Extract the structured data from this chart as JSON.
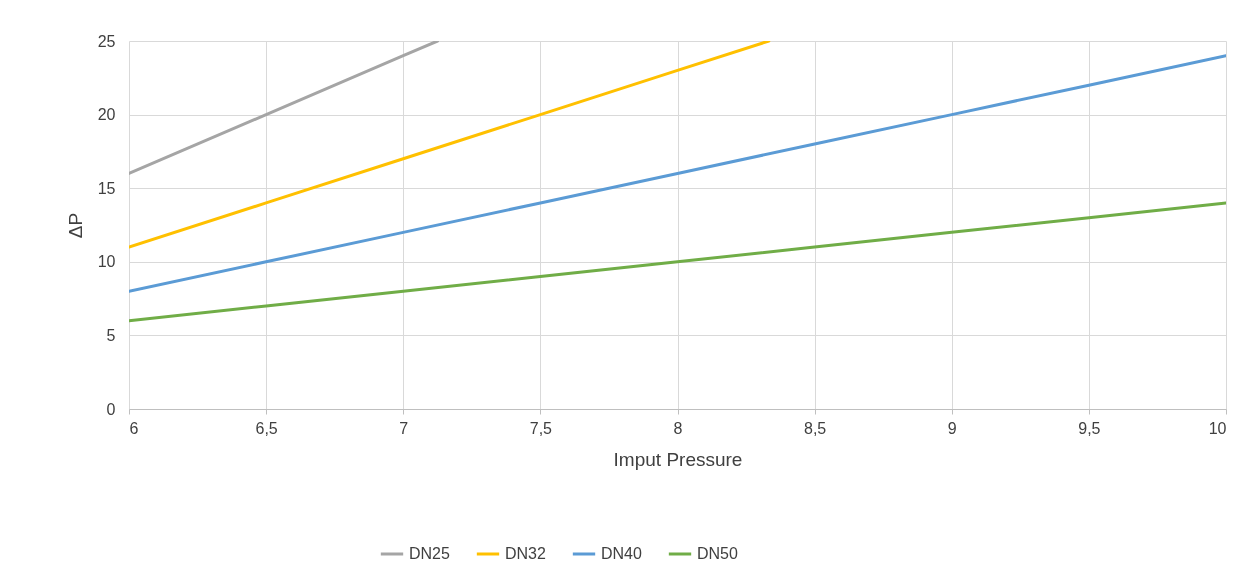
{
  "chart_data": {
    "type": "line",
    "xlabel": "Imput Pressure",
    "ylabel": "ΔP",
    "xlim": [
      6,
      10
    ],
    "ylim": [
      0,
      25
    ],
    "xticks": [
      6,
      {
        "value": 6.5,
        "label": "6,5"
      },
      7,
      {
        "value": 7.5,
        "label": "7,5"
      },
      8,
      {
        "value": 8.5,
        "label": "8,5"
      },
      9,
      {
        "value": 9.5,
        "label": "9,5"
      },
      10
    ],
    "yticks": [
      0,
      5,
      10,
      15,
      20,
      25
    ],
    "grid": true,
    "legend": "bottom",
    "series": [
      {
        "name": "DN25",
        "color": "#a5a5a5",
        "x": [
          6,
          6.5,
          7,
          7.125
        ],
        "values": [
          16,
          20,
          24,
          25
        ]
      },
      {
        "name": "DN32",
        "color": "#ffc000",
        "x": [
          6,
          6.5,
          7,
          7.5,
          8,
          8.333
        ],
        "values": [
          11,
          14,
          17,
          20,
          23,
          25
        ]
      },
      {
        "name": "DN40",
        "color": "#5b9bd5",
        "x": [
          6,
          6.5,
          7,
          7.5,
          8,
          8.5,
          9,
          9.5,
          10
        ],
        "values": [
          8,
          10,
          12,
          14,
          16,
          18,
          20,
          22,
          24
        ]
      },
      {
        "name": "DN50",
        "color": "#70ad47",
        "x": [
          6,
          6.5,
          7,
          7.5,
          8,
          8.5,
          9,
          9.5,
          10
        ],
        "values": [
          6,
          7,
          8,
          9,
          10,
          11,
          12,
          13,
          14
        ]
      }
    ]
  }
}
